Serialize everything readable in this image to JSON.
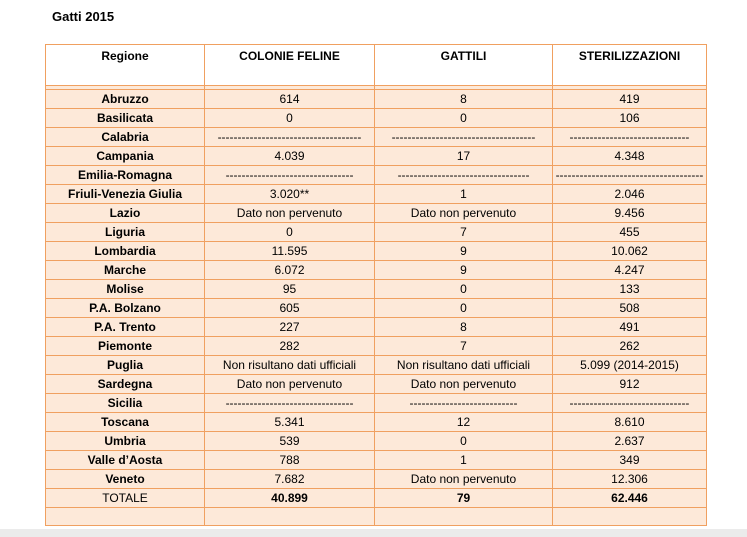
{
  "title": "Gatti 2015",
  "headers": [
    "Regione",
    "COLONIE FELINE",
    "GATTILI",
    "STERILIZZAZIONI"
  ],
  "rows": [
    [
      "Abruzzo",
      "614",
      "8",
      "419"
    ],
    [
      "Basilicata",
      "0",
      "0",
      "106"
    ],
    [
      "Calabria",
      "------------------------------------",
      "------------------------------------",
      "------------------------------"
    ],
    [
      "Campania",
      "4.039",
      "17",
      "4.348"
    ],
    [
      "Emilia-Romagna",
      "--------------------------------",
      "---------------------------------",
      "-------------------------------------"
    ],
    [
      "Friuli-Venezia Giulia",
      "3.020**",
      "1",
      "2.046"
    ],
    [
      "Lazio",
      "Dato non pervenuto",
      "Dato non pervenuto",
      "9.456"
    ],
    [
      "Liguria",
      "0",
      "7",
      "455"
    ],
    [
      "Lombardia",
      "11.595",
      "9",
      "10.062"
    ],
    [
      "Marche",
      "6.072",
      "9",
      "4.247"
    ],
    [
      "Molise",
      "95",
      "0",
      "133"
    ],
    [
      "P.A. Bolzano",
      "605",
      "0",
      "508"
    ],
    [
      "P.A. Trento",
      "227",
      "8",
      "491"
    ],
    [
      "Piemonte",
      "282",
      "7",
      "262"
    ],
    [
      "Puglia",
      "Non risultano dati ufficiali",
      "Non risultano dati ufficiali",
      "5.099 (2014-2015)"
    ],
    [
      "Sardegna",
      "Dato non pervenuto",
      "Dato non pervenuto",
      "912"
    ],
    [
      "Sicilia",
      "--------------------------------",
      "---------------------------",
      "------------------------------"
    ],
    [
      "Toscana",
      "5.341",
      "12",
      "8.610"
    ],
    [
      "Umbria",
      "539",
      "0",
      "2.637"
    ],
    [
      "Valle d’Aosta",
      "788",
      "1",
      "349"
    ],
    [
      "Veneto",
      "7.682",
      "Dato non pervenuto",
      "12.306"
    ]
  ],
  "total": [
    "TOTALE",
    "40.899",
    "79",
    "62.446"
  ],
  "colors": {
    "border": "#f0a060",
    "cell_fill": "#fde9d9"
  }
}
